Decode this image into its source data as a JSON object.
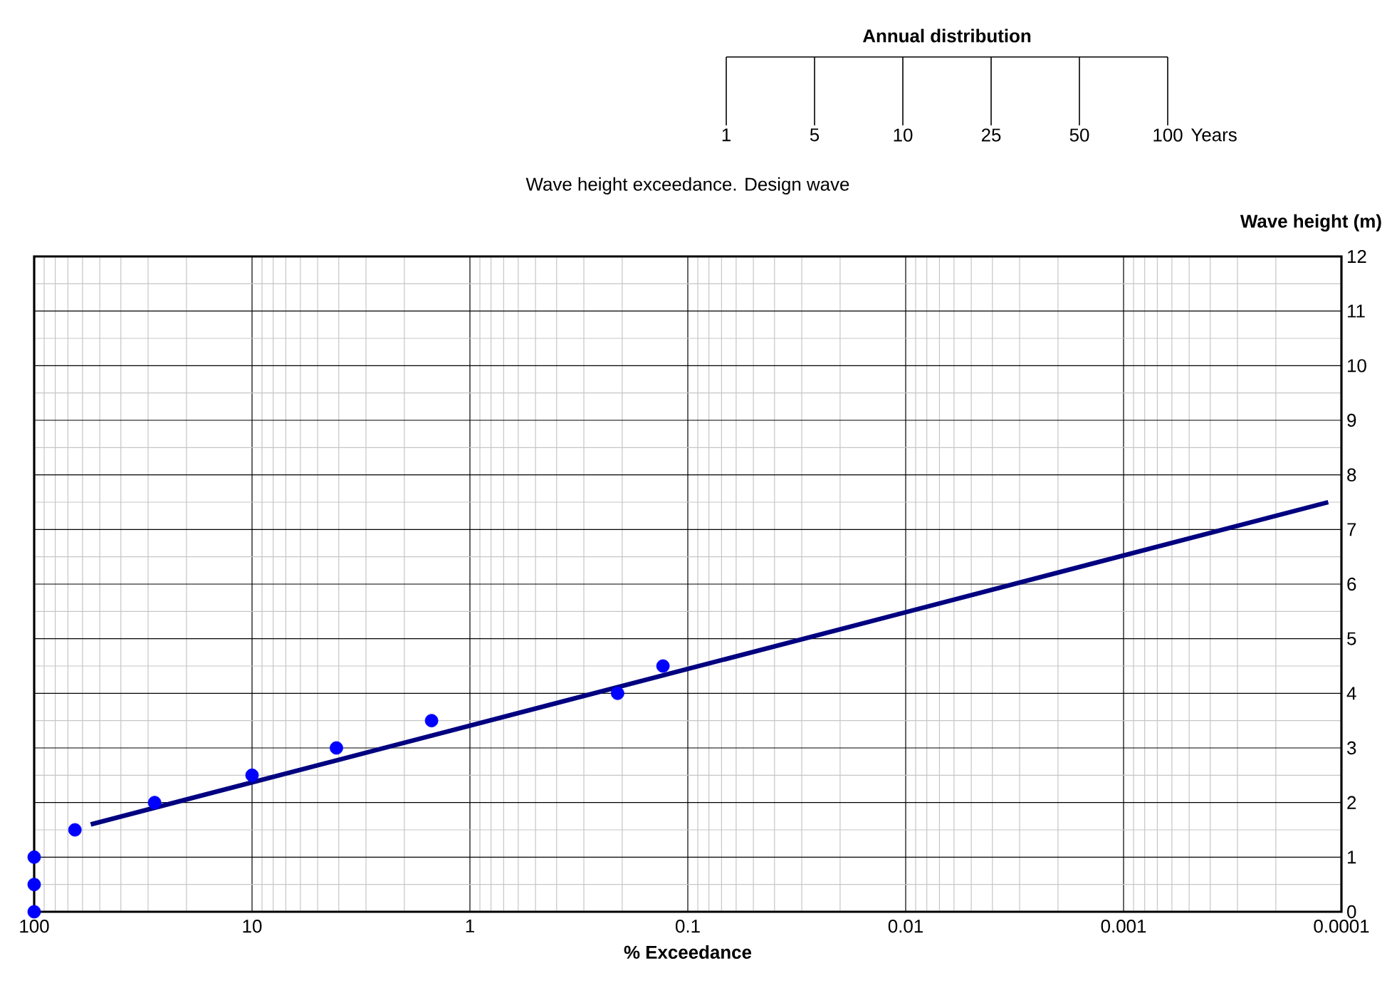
{
  "chart_data": [
    {
      "type": "other",
      "title": "Annual distribution",
      "xlabel": "Years",
      "categories": [
        "1",
        "5",
        "10",
        "25",
        "50",
        "100"
      ]
    },
    {
      "type": "scatter",
      "title": "Wave height exceedance. Design wave",
      "xlabel": "% Exceedance",
      "ylabel": "Wave height (m)",
      "log": "x",
      "xlim": [
        100,
        0.0001
      ],
      "xticks": [
        100,
        10,
        1,
        0.1,
        0.01,
        0.001,
        0.0001
      ],
      "ylim": [
        0,
        12
      ],
      "yticks": [
        0,
        1,
        2,
        3,
        4,
        5,
        6,
        7,
        8,
        9,
        10,
        11,
        12
      ],
      "grid": true,
      "series": [
        {
          "type": "scatter",
          "color": "#0000ff",
          "marker": "circle",
          "x": [
            100,
            100,
            100,
            65,
            28,
            10,
            4.1,
            1.5,
            0.21,
            0.13
          ],
          "values": [
            0,
            0.5,
            1,
            1.5,
            2,
            2.5,
            3,
            3.5,
            4,
            4.5
          ]
        },
        {
          "type": "line",
          "color": "#000080",
          "marker": "none",
          "line_style": "solid",
          "x": [
            55,
            0.000115
          ],
          "values": [
            1.6,
            7.5
          ]
        }
      ]
    }
  ]
}
